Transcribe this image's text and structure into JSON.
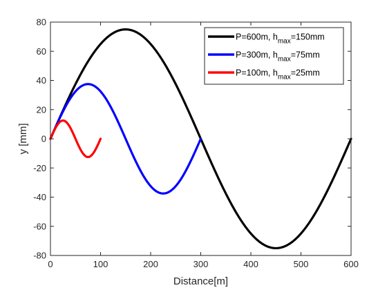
{
  "chart_data": {
    "type": "line",
    "xlabel": "Distance[m]",
    "ylabel": "y [mm]",
    "xlim": [
      0,
      600
    ],
    "ylim": [
      -80,
      80
    ],
    "xticks": [
      "0",
      "100",
      "200",
      "300",
      "400",
      "500",
      "600"
    ],
    "yticks": [
      "-80",
      "-60",
      "-40",
      "-20",
      "0",
      "20",
      "40",
      "60",
      "80"
    ],
    "grid": false,
    "legend_position": "top-right",
    "series": [
      {
        "name_parts": [
          "P=600m, h",
          "max",
          "=150mm"
        ],
        "color": "#000000",
        "period_m": 600,
        "amplitude_mm": 75,
        "x_end": 600,
        "points_x": [
          0,
          150,
          300,
          450,
          600
        ],
        "points_y": [
          0,
          75,
          0,
          -75,
          0
        ]
      },
      {
        "name_parts": [
          "P=300m, h",
          "max",
          "=75mm"
        ],
        "color": "#0000ff",
        "period_m": 300,
        "amplitude_mm": 37.5,
        "x_end": 300,
        "points_x": [
          0,
          75,
          150,
          225,
          300
        ],
        "points_y": [
          0,
          37.5,
          0,
          -37.5,
          0
        ]
      },
      {
        "name_parts": [
          "P=100m, h",
          "max",
          "=25mm"
        ],
        "color": "#ff0000",
        "period_m": 100,
        "amplitude_mm": 12.5,
        "x_end": 100,
        "points_x": [
          0,
          25,
          50,
          75,
          100
        ],
        "points_y": [
          0,
          12.5,
          0,
          -12.5,
          0
        ]
      }
    ]
  }
}
